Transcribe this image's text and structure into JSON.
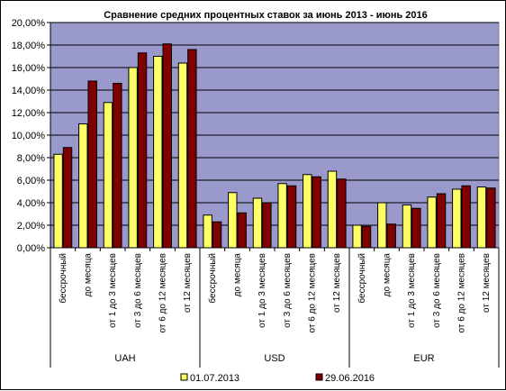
{
  "chart_data": {
    "type": "bar",
    "title": "Сравнение средних процентных ставок за июнь 2013 - июнь 2016",
    "xlabel": "",
    "ylabel": "",
    "ylim": [
      0,
      20
    ],
    "yticks": [
      "0,00%",
      "2,00%",
      "4,00%",
      "6,00%",
      "8,00%",
      "10,00%",
      "12,00%",
      "14,00%",
      "16,00%",
      "18,00%",
      "20,00%"
    ],
    "grid": true,
    "legend_position": "bottom",
    "groups": [
      {
        "name": "UAH",
        "categories": [
          "бессрочный",
          "до месяца",
          "от 1 до 3 месяцев",
          "от 3 до 6 месяцев",
          "от 6 до 12 месяцев",
          "от 12 месяцев"
        ]
      },
      {
        "name": "USD",
        "categories": [
          "бессрочный",
          "до месяца",
          "от 1 до 3 месяцев",
          "от 3 до 6 месяцев",
          "от 6 до 12 месяцев",
          "от 12 месяцев"
        ]
      },
      {
        "name": "EUR",
        "categories": [
          "бессрочный",
          "до месяца",
          "от 1 до 3 месяцев",
          "от 3 до 6 месяцев",
          "от 6 до 12 месяцев",
          "от 12 месяцев"
        ]
      }
    ],
    "series": [
      {
        "name": "01.07.2013",
        "color": "#FFFF66",
        "values": [
          8.3,
          11.0,
          12.9,
          16.0,
          17.0,
          16.4,
          2.9,
          4.9,
          4.4,
          5.7,
          6.5,
          6.8,
          2.0,
          4.0,
          3.8,
          4.5,
          5.2,
          5.4
        ]
      },
      {
        "name": "29.06.2016",
        "color": "#800000",
        "values": [
          8.9,
          14.8,
          14.6,
          17.3,
          18.1,
          17.6,
          2.3,
          3.1,
          4.0,
          5.5,
          6.3,
          6.1,
          1.9,
          2.1,
          3.5,
          4.8,
          5.5,
          5.3
        ]
      }
    ]
  },
  "colors": {
    "plot_background": "#9999CC",
    "gridline": "#000000"
  }
}
